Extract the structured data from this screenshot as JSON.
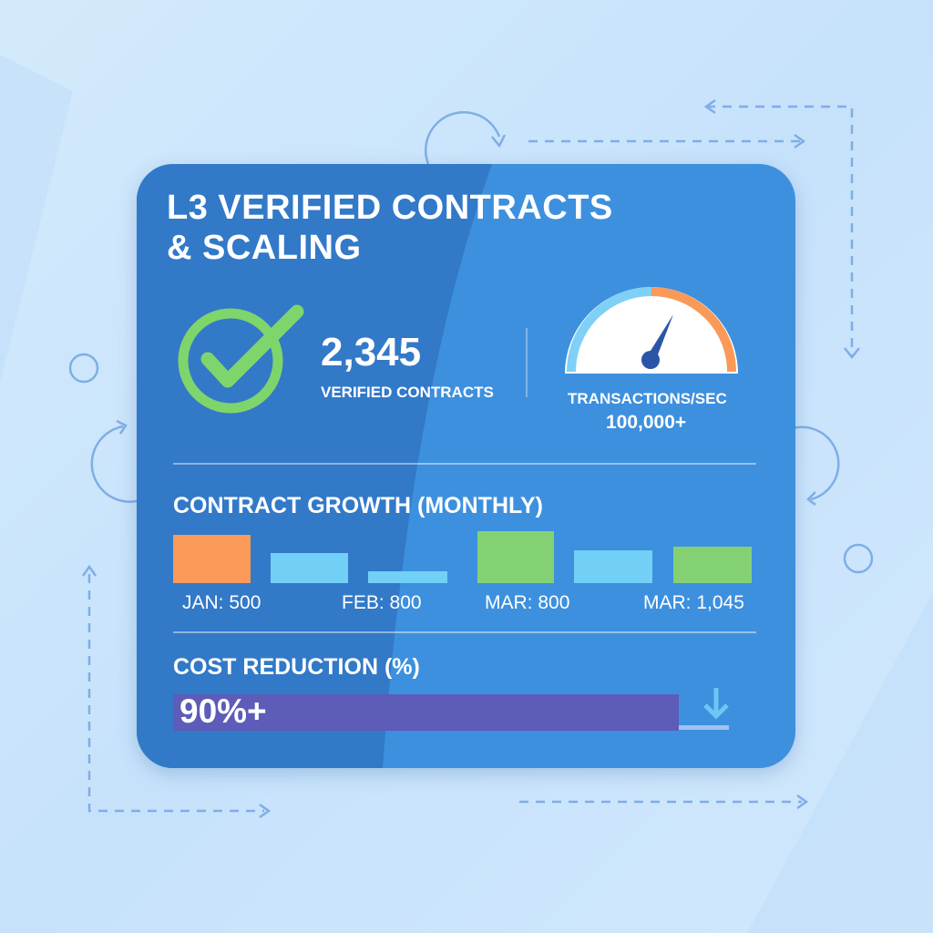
{
  "title_line1": "L3 VERIFIED CONTRACTS",
  "title_line2": "& SCALING",
  "verified": {
    "value": "2,345",
    "label": "VERIFIED CONTRACTS",
    "icon": "check-circle-icon",
    "color": "#7ed56b"
  },
  "throughput": {
    "label": "TRANSACTIONS/SEC",
    "value": "100,000+",
    "icon": "speedometer-gauge-icon"
  },
  "growth": {
    "heading": "CONTRACT GROWTH (MONTHLY)",
    "labels": [
      "JAN: 500",
      "FEB: 800",
      "MAR: 800",
      "MAR: 1,045"
    ],
    "bar_colors": [
      "#f99a58",
      "#72d0f6",
      "#72d0f6",
      "#84d173",
      "#72d0f6",
      "#84d173"
    ]
  },
  "cost": {
    "heading": "COST REDUCTION (%)",
    "value": "90%+",
    "fill_percent": 91,
    "bar_color": "#5d5cb8",
    "icon": "arrow-down-icon"
  },
  "colors": {
    "card_dark": "#3279c8",
    "card_light": "#3d90de",
    "background": "#cde6fb",
    "accent_orange": "#f99a58"
  }
}
